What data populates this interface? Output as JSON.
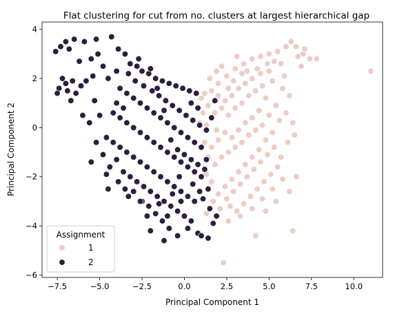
{
  "chart_data": {
    "type": "scatter",
    "title": "Flat clustering for cut from no. clusters at largest hierarchical gap",
    "xlabel": "Principal Component 1",
    "ylabel": "Principal Component 2",
    "xlim": [
      -8.4,
      11.7
    ],
    "ylim": [
      -6.1,
      4.3
    ],
    "xticks": [
      -7.5,
      -5.0,
      -2.5,
      0.0,
      2.5,
      5.0,
      7.5,
      10.0
    ],
    "xtick_labels": [
      "−7.5",
      "−5.0",
      "−2.5",
      "0.0",
      "2.5",
      "5.0",
      "7.5",
      "10.0"
    ],
    "yticks": [
      -6,
      -4,
      -2,
      0,
      2,
      4
    ],
    "ytick_labels": [
      "−6",
      "−4",
      "−2",
      "0",
      "2",
      "4"
    ],
    "grid": false,
    "legend": {
      "title": "Assignment",
      "position": "lower-left",
      "entries": [
        {
          "label": "1",
          "color": "#ebcdc5"
        },
        {
          "label": "2",
          "color": "#2d1e3e"
        }
      ]
    },
    "series": [
      {
        "name": "1",
        "color": "#ebcdc5",
        "points": [
          [
            1.5,
            2.0
          ],
          [
            2.0,
            1.8
          ],
          [
            2.5,
            2.1
          ],
          [
            3.0,
            2.4
          ],
          [
            3.5,
            2.6
          ],
          [
            4.0,
            2.8
          ],
          [
            4.5,
            2.9
          ],
          [
            5.0,
            3.0
          ],
          [
            5.5,
            3.1
          ],
          [
            6.0,
            3.3
          ],
          [
            6.3,
            3.5
          ],
          [
            6.6,
            3.3
          ],
          [
            7.1,
            3.2
          ],
          [
            7.4,
            2.8
          ],
          [
            7.0,
            3.0
          ],
          [
            5.7,
            2.6
          ],
          [
            5.0,
            2.3
          ],
          [
            4.5,
            2.2
          ],
          [
            4.0,
            2.0
          ],
          [
            3.6,
            1.8
          ],
          [
            3.2,
            1.6
          ],
          [
            2.8,
            1.3
          ],
          [
            2.4,
            1.1
          ],
          [
            2.0,
            1.3
          ],
          [
            1.6,
            1.5
          ],
          [
            1.2,
            1.4
          ],
          [
            1.0,
            1.2
          ],
          [
            1.4,
            0.9
          ],
          [
            1.8,
            0.6
          ],
          [
            2.2,
            0.8
          ],
          [
            2.6,
            0.5
          ],
          [
            3.0,
            0.8
          ],
          [
            3.4,
            1.0
          ],
          [
            3.8,
            1.3
          ],
          [
            4.2,
            1.5
          ],
          [
            4.6,
            1.7
          ],
          [
            5.2,
            1.9
          ],
          [
            5.8,
            1.6
          ],
          [
            6.2,
            1.3
          ],
          [
            4.8,
            1.2
          ],
          [
            4.4,
            0.7
          ],
          [
            4.0,
            0.4
          ],
          [
            3.6,
            0.2
          ],
          [
            3.2,
            -0.1
          ],
          [
            2.8,
            -0.4
          ],
          [
            2.4,
            -0.2
          ],
          [
            2.0,
            -0.5
          ],
          [
            1.6,
            -0.8
          ],
          [
            1.2,
            -0.6
          ],
          [
            1.4,
            -1.2
          ],
          [
            1.8,
            -1.5
          ],
          [
            2.2,
            -1.2
          ],
          [
            2.6,
            -1.0
          ],
          [
            3.0,
            -0.8
          ],
          [
            3.4,
            -0.6
          ],
          [
            3.8,
            -0.3
          ],
          [
            4.2,
            -0.1
          ],
          [
            4.6,
            0.1
          ],
          [
            5.0,
            0.5
          ],
          [
            5.4,
            0.9
          ],
          [
            5.6,
            0.3
          ],
          [
            5.2,
            -0.2
          ],
          [
            4.8,
            -0.5
          ],
          [
            4.4,
            -0.9
          ],
          [
            4.0,
            -1.2
          ],
          [
            3.6,
            -1.5
          ],
          [
            3.2,
            -1.8
          ],
          [
            2.8,
            -2.1
          ],
          [
            2.4,
            -2.4
          ],
          [
            2.0,
            -2.7
          ],
          [
            1.6,
            -2.2
          ],
          [
            1.3,
            -1.9
          ],
          [
            1.7,
            -3.0
          ],
          [
            2.1,
            -3.3
          ],
          [
            2.5,
            -2.9
          ],
          [
            2.9,
            -2.6
          ],
          [
            3.3,
            -2.3
          ],
          [
            3.7,
            -2.0
          ],
          [
            4.1,
            -1.7
          ],
          [
            4.5,
            -1.4
          ],
          [
            4.9,
            -1.1
          ],
          [
            5.3,
            -0.8
          ],
          [
            5.7,
            -1.2
          ],
          [
            6.1,
            -0.6
          ],
          [
            6.5,
            -0.3
          ],
          [
            6.0,
            0.6
          ],
          [
            6.4,
            0.2
          ],
          [
            5.5,
            -1.6
          ],
          [
            5.1,
            -1.9
          ],
          [
            4.7,
            -2.2
          ],
          [
            4.3,
            -2.5
          ],
          [
            3.9,
            -2.8
          ],
          [
            3.5,
            -3.1
          ],
          [
            3.1,
            -3.4
          ],
          [
            2.7,
            -3.2
          ],
          [
            3.3,
            -3.6
          ],
          [
            4.0,
            -3.3
          ],
          [
            4.6,
            -2.9
          ],
          [
            5.2,
            -2.5
          ],
          [
            5.8,
            -2.1
          ],
          [
            6.2,
            -2.6
          ],
          [
            6.6,
            -2.0
          ],
          [
            5.4,
            -3.0
          ],
          [
            4.8,
            -3.4
          ],
          [
            6.4,
            -4.2
          ],
          [
            4.2,
            -4.4
          ],
          [
            2.3,
            -5.5
          ],
          [
            11.0,
            2.3
          ],
          [
            7.8,
            2.8
          ],
          [
            6.9,
            2.5
          ],
          [
            2.2,
            2.5
          ],
          [
            1.9,
            2.3
          ],
          [
            3.1,
            2.9
          ],
          [
            3.7,
            2.3
          ],
          [
            4.3,
            2.4
          ],
          [
            5.3,
            2.7
          ],
          [
            2.6,
            1.6
          ],
          [
            1.1,
            0.6
          ],
          [
            0.9,
            0.2
          ],
          [
            1.3,
            0.1
          ],
          [
            1.9,
            -0.1
          ],
          [
            5.9,
            2.1
          ],
          [
            6.7,
            2.9
          ],
          [
            3.4,
            2.2
          ],
          [
            2.9,
            1.9
          ],
          [
            4.9,
            2.6
          ],
          [
            1.3,
            -3.5
          ],
          [
            2.6,
            -3.8
          ]
        ]
      },
      {
        "name": "2",
        "color": "#2d1e3e",
        "points": [
          [
            -7.6,
            3.1
          ],
          [
            -7.3,
            3.3
          ],
          [
            -7.0,
            3.5
          ],
          [
            -6.8,
            3.2
          ],
          [
            -7.4,
            1.6
          ],
          [
            -7.5,
            1.4
          ],
          [
            -7.0,
            1.8
          ],
          [
            -6.7,
            1.1
          ],
          [
            -6.4,
            1.4
          ],
          [
            -6.1,
            1.7
          ],
          [
            -5.8,
            1.9
          ],
          [
            -5.4,
            2.1
          ],
          [
            -6.2,
            2.7
          ],
          [
            -6.5,
            3.6
          ],
          [
            -5.9,
            3.5
          ],
          [
            -5.2,
            3.6
          ],
          [
            -4.8,
            2.5
          ],
          [
            -4.3,
            3.7
          ],
          [
            -3.9,
            3.2
          ],
          [
            -3.5,
            3.0
          ],
          [
            -3.2,
            2.6
          ],
          [
            -2.8,
            2.5
          ],
          [
            -2.5,
            2.3
          ],
          [
            -2.1,
            2.2
          ],
          [
            -1.7,
            2.0
          ],
          [
            -1.3,
            1.9
          ],
          [
            -0.9,
            1.8
          ],
          [
            -0.5,
            1.7
          ],
          [
            -0.1,
            1.6
          ],
          [
            0.3,
            1.5
          ],
          [
            0.7,
            1.4
          ],
          [
            -3.8,
            1.6
          ],
          [
            -3.4,
            1.4
          ],
          [
            -3.0,
            1.2
          ],
          [
            -2.6,
            1.0
          ],
          [
            -2.2,
            0.8
          ],
          [
            -1.8,
            0.6
          ],
          [
            -1.4,
            0.4
          ],
          [
            -1.0,
            0.2
          ],
          [
            -0.6,
            0.0
          ],
          [
            -0.2,
            -0.2
          ],
          [
            0.2,
            -0.4
          ],
          [
            0.6,
            -0.6
          ],
          [
            1.0,
            -0.8
          ],
          [
            -4.2,
            0.6
          ],
          [
            -3.8,
            0.4
          ],
          [
            -3.4,
            0.2
          ],
          [
            -3.0,
            0.0
          ],
          [
            -2.6,
            -0.2
          ],
          [
            -2.2,
            -0.4
          ],
          [
            -1.8,
            -0.6
          ],
          [
            -1.4,
            -0.8
          ],
          [
            -1.0,
            -1.0
          ],
          [
            -0.6,
            -1.2
          ],
          [
            -0.2,
            -1.4
          ],
          [
            0.2,
            -1.6
          ],
          [
            0.6,
            -1.8
          ],
          [
            1.0,
            -2.0
          ],
          [
            -4.6,
            -0.4
          ],
          [
            -4.2,
            -0.6
          ],
          [
            -3.8,
            -0.8
          ],
          [
            -3.4,
            -1.0
          ],
          [
            -3.0,
            -1.2
          ],
          [
            -2.6,
            -1.4
          ],
          [
            -2.2,
            -1.6
          ],
          [
            -1.8,
            -1.8
          ],
          [
            -1.4,
            -2.0
          ],
          [
            -1.0,
            -2.2
          ],
          [
            -0.6,
            -2.4
          ],
          [
            -0.2,
            -2.6
          ],
          [
            0.2,
            -2.8
          ],
          [
            0.6,
            -3.0
          ],
          [
            -3.6,
            -1.8
          ],
          [
            -3.2,
            -2.0
          ],
          [
            -2.8,
            -2.2
          ],
          [
            -2.4,
            -2.4
          ],
          [
            -2.0,
            -2.6
          ],
          [
            -1.6,
            -2.8
          ],
          [
            -1.2,
            -3.0
          ],
          [
            -0.8,
            -3.2
          ],
          [
            -0.4,
            -3.4
          ],
          [
            0.0,
            -3.6
          ],
          [
            0.4,
            -3.8
          ],
          [
            -2.1,
            -3.2
          ],
          [
            -1.7,
            -3.5
          ],
          [
            -1.3,
            -3.8
          ],
          [
            -0.9,
            -4.1
          ],
          [
            -0.4,
            -4.4
          ],
          [
            0.2,
            -4.1
          ],
          [
            0.8,
            -4.3
          ],
          [
            1.4,
            -4.5
          ],
          [
            1.0,
            -4.4
          ],
          [
            -2.0,
            -4.2
          ],
          [
            -1.2,
            -4.6
          ],
          [
            -4.0,
            1.0
          ],
          [
            -3.6,
            0.8
          ],
          [
            -2.9,
            1.9
          ],
          [
            -2.4,
            1.7
          ],
          [
            -1.9,
            1.5
          ],
          [
            -1.5,
            1.3
          ],
          [
            -1.1,
            1.1
          ],
          [
            -0.7,
            0.9
          ],
          [
            -0.3,
            0.7
          ],
          [
            0.1,
            0.5
          ],
          [
            0.5,
            0.3
          ],
          [
            0.9,
            0.1
          ],
          [
            1.3,
            -0.1
          ],
          [
            0.4,
            1.0
          ],
          [
            0.8,
            0.8
          ],
          [
            -5.0,
            0.5
          ],
          [
            -5.3,
            1.1
          ],
          [
            -5.6,
            0.2
          ],
          [
            -6.0,
            0.5
          ],
          [
            -6.6,
            1.9
          ],
          [
            -6.9,
            1.5
          ],
          [
            -7.2,
            2.0
          ],
          [
            -5.5,
            2.8
          ],
          [
            -5.1,
            3.0
          ],
          [
            -4.5,
            2.0
          ],
          [
            -4.0,
            2.3
          ],
          [
            -3.3,
            2.2
          ],
          [
            -2.7,
            2.8
          ],
          [
            -2.0,
            2.4
          ],
          [
            -1.6,
            1.6
          ],
          [
            -1.2,
            0.7
          ],
          [
            -0.8,
            -0.5
          ],
          [
            -0.4,
            -0.9
          ],
          [
            0.0,
            -1.1
          ],
          [
            0.4,
            -1.3
          ],
          [
            0.8,
            -1.5
          ],
          [
            1.2,
            -1.7
          ],
          [
            1.4,
            -2.5
          ],
          [
            1.1,
            -2.9
          ],
          [
            1.5,
            -3.3
          ],
          [
            1.9,
            -3.6
          ],
          [
            1.7,
            -3.9
          ],
          [
            -4.4,
            -1.6
          ],
          [
            -4.0,
            -1.3
          ],
          [
            -3.0,
            -2.6
          ],
          [
            -2.5,
            -3.0
          ],
          [
            -1.5,
            -3.1
          ],
          [
            -0.7,
            -2.7
          ],
          [
            -0.3,
            -2.0
          ],
          [
            0.5,
            -2.3
          ],
          [
            0.9,
            -2.6
          ],
          [
            1.3,
            -1.3
          ],
          [
            1.6,
            0.4
          ],
          [
            1.8,
            1.1
          ],
          [
            -5.2,
            -0.6
          ],
          [
            -5.5,
            -1.4
          ],
          [
            -4.8,
            -1.1
          ],
          [
            -4.6,
            -1.9
          ],
          [
            -3.9,
            -2.2
          ],
          [
            -3.3,
            -2.8
          ],
          [
            -2.2,
            -3.6
          ],
          [
            -2.6,
            -3.0
          ],
          [
            -4.5,
            -2.5
          ],
          [
            -3.5,
            -2.5
          ],
          [
            -1.0,
            -3.6
          ],
          [
            -0.2,
            -3.0
          ]
        ]
      }
    ]
  }
}
